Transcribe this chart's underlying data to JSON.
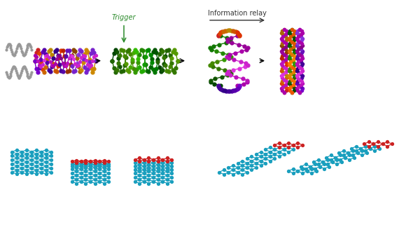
{
  "fig_width": 6.0,
  "fig_height": 3.21,
  "dpi": 100,
  "bg_color": "#ffffff",
  "trigger_label": "Trigger",
  "trigger_color": "#2a8a2a",
  "relay_label": "Information relay",
  "relay_color": "#333333",
  "dna_colors": [
    "#cc2222",
    "#dd4400",
    "#cc6600",
    "#aa8800",
    "#cc2200",
    "#dd6600",
    "#bb3300",
    "#993300",
    "#aa00aa",
    "#8800bb",
    "#6600cc",
    "#4400cc",
    "#2244cc",
    "#0066cc",
    "#0088aa",
    "#006644",
    "#228822",
    "#116600"
  ],
  "top_strand_colors": [
    "#cc2222",
    "#dd5500",
    "#bb3300",
    "#996600",
    "#aa8800",
    "#cc6600",
    "#dd4400"
  ],
  "mid_strand_colors": [
    "#228800",
    "#116600",
    "#006633",
    "#005566",
    "#003388",
    "#224499",
    "#4455aa"
  ],
  "bot_strand_colors": [
    "#7700cc",
    "#5500bb",
    "#4400aa",
    "#330088",
    "#220077",
    "#440099",
    "#6600bb"
  ],
  "dna_color_row2": "#1a9fbe",
  "dna_red_accent": "#cc2222",
  "bead_size_row1": 3.5,
  "bead_size_row2": 2.8,
  "lw_row1": 1.0,
  "lw_row2": 0.9
}
